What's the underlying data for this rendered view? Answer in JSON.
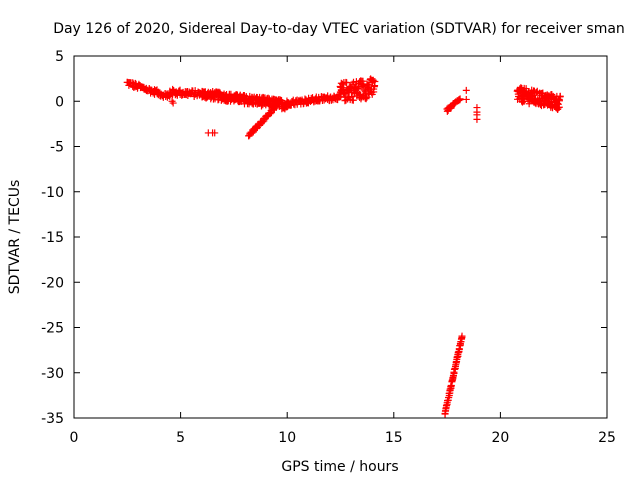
{
  "chart_data": {
    "type": "scatter",
    "title": "Day 126 of 2020, Sidereal Day-to-day VTEC variation (SDTVAR) for receiver sman",
    "xlabel": "GPS time / hours",
    "ylabel": "SDTVAR / TECUs",
    "xlim": [
      0,
      25
    ],
    "ylim": [
      -35,
      5
    ],
    "xticks": [
      0,
      5,
      10,
      15,
      20,
      25
    ],
    "yticks": [
      5,
      0,
      -5,
      -10,
      -15,
      -20,
      -25,
      -30,
      -35
    ],
    "xtick_labels": [
      "0",
      "5",
      "10",
      "15",
      "20",
      "25"
    ],
    "ytick_labels": [
      "5",
      "0",
      "-5",
      "-10",
      "-15",
      "-20",
      "-25",
      "-30",
      "-35"
    ],
    "grid": false,
    "marker": "+",
    "color": "#ff0000",
    "segments": [
      {
        "x_start": 2.5,
        "x_end": 4.5,
        "step": 0.06,
        "y_start": 2.0,
        "y_end": 0.5,
        "spread": 0.6
      },
      {
        "x_start": 4.5,
        "x_end": 6.0,
        "step": 0.06,
        "y_start": 1.0,
        "y_end": 0.8,
        "spread": 0.7
      },
      {
        "x_start": 6.0,
        "x_end": 8.0,
        "step": 0.05,
        "y_start": 0.8,
        "y_end": 0.2,
        "spread": 0.9
      },
      {
        "x_start": 8.0,
        "x_end": 10.0,
        "step": 0.05,
        "y_start": 0.2,
        "y_end": -0.4,
        "spread": 1.0
      },
      {
        "x_start": 10.0,
        "x_end": 12.5,
        "step": 0.06,
        "y_start": -0.2,
        "y_end": 0.5,
        "spread": 0.6
      },
      {
        "x_start": 12.5,
        "x_end": 14.1,
        "step": 0.05,
        "y_start": 1.0,
        "y_end": 1.5,
        "spread": 2.2
      },
      {
        "x_start": 8.2,
        "x_end": 9.5,
        "step": 0.05,
        "y_start": -3.8,
        "y_end": -0.5,
        "spread": 0.3
      },
      {
        "x_start": 17.4,
        "x_end": 18.2,
        "step": 0.025,
        "y_start": -34.5,
        "y_end": -26.0,
        "spread": 0.3
      },
      {
        "x_start": 17.5,
        "x_end": 18.1,
        "step": 0.06,
        "y_start": -1.0,
        "y_end": 0.2,
        "spread": 0.3
      },
      {
        "x_start": 20.8,
        "x_end": 22.8,
        "step": 0.04,
        "y_start": 0.8,
        "y_end": -0.2,
        "spread": 1.6
      }
    ],
    "isolated_points": [
      {
        "x": 4.6,
        "y": 0.0
      },
      {
        "x": 4.65,
        "y": -0.2
      },
      {
        "x": 6.3,
        "y": -3.5
      },
      {
        "x": 6.5,
        "y": -3.5
      },
      {
        "x": 6.6,
        "y": -3.5
      },
      {
        "x": 18.4,
        "y": 1.2
      },
      {
        "x": 18.4,
        "y": 0.2
      },
      {
        "x": 18.9,
        "y": -0.7
      },
      {
        "x": 18.9,
        "y": -1.2
      },
      {
        "x": 18.9,
        "y": -1.5
      },
      {
        "x": 18.9,
        "y": -2.0
      }
    ]
  }
}
